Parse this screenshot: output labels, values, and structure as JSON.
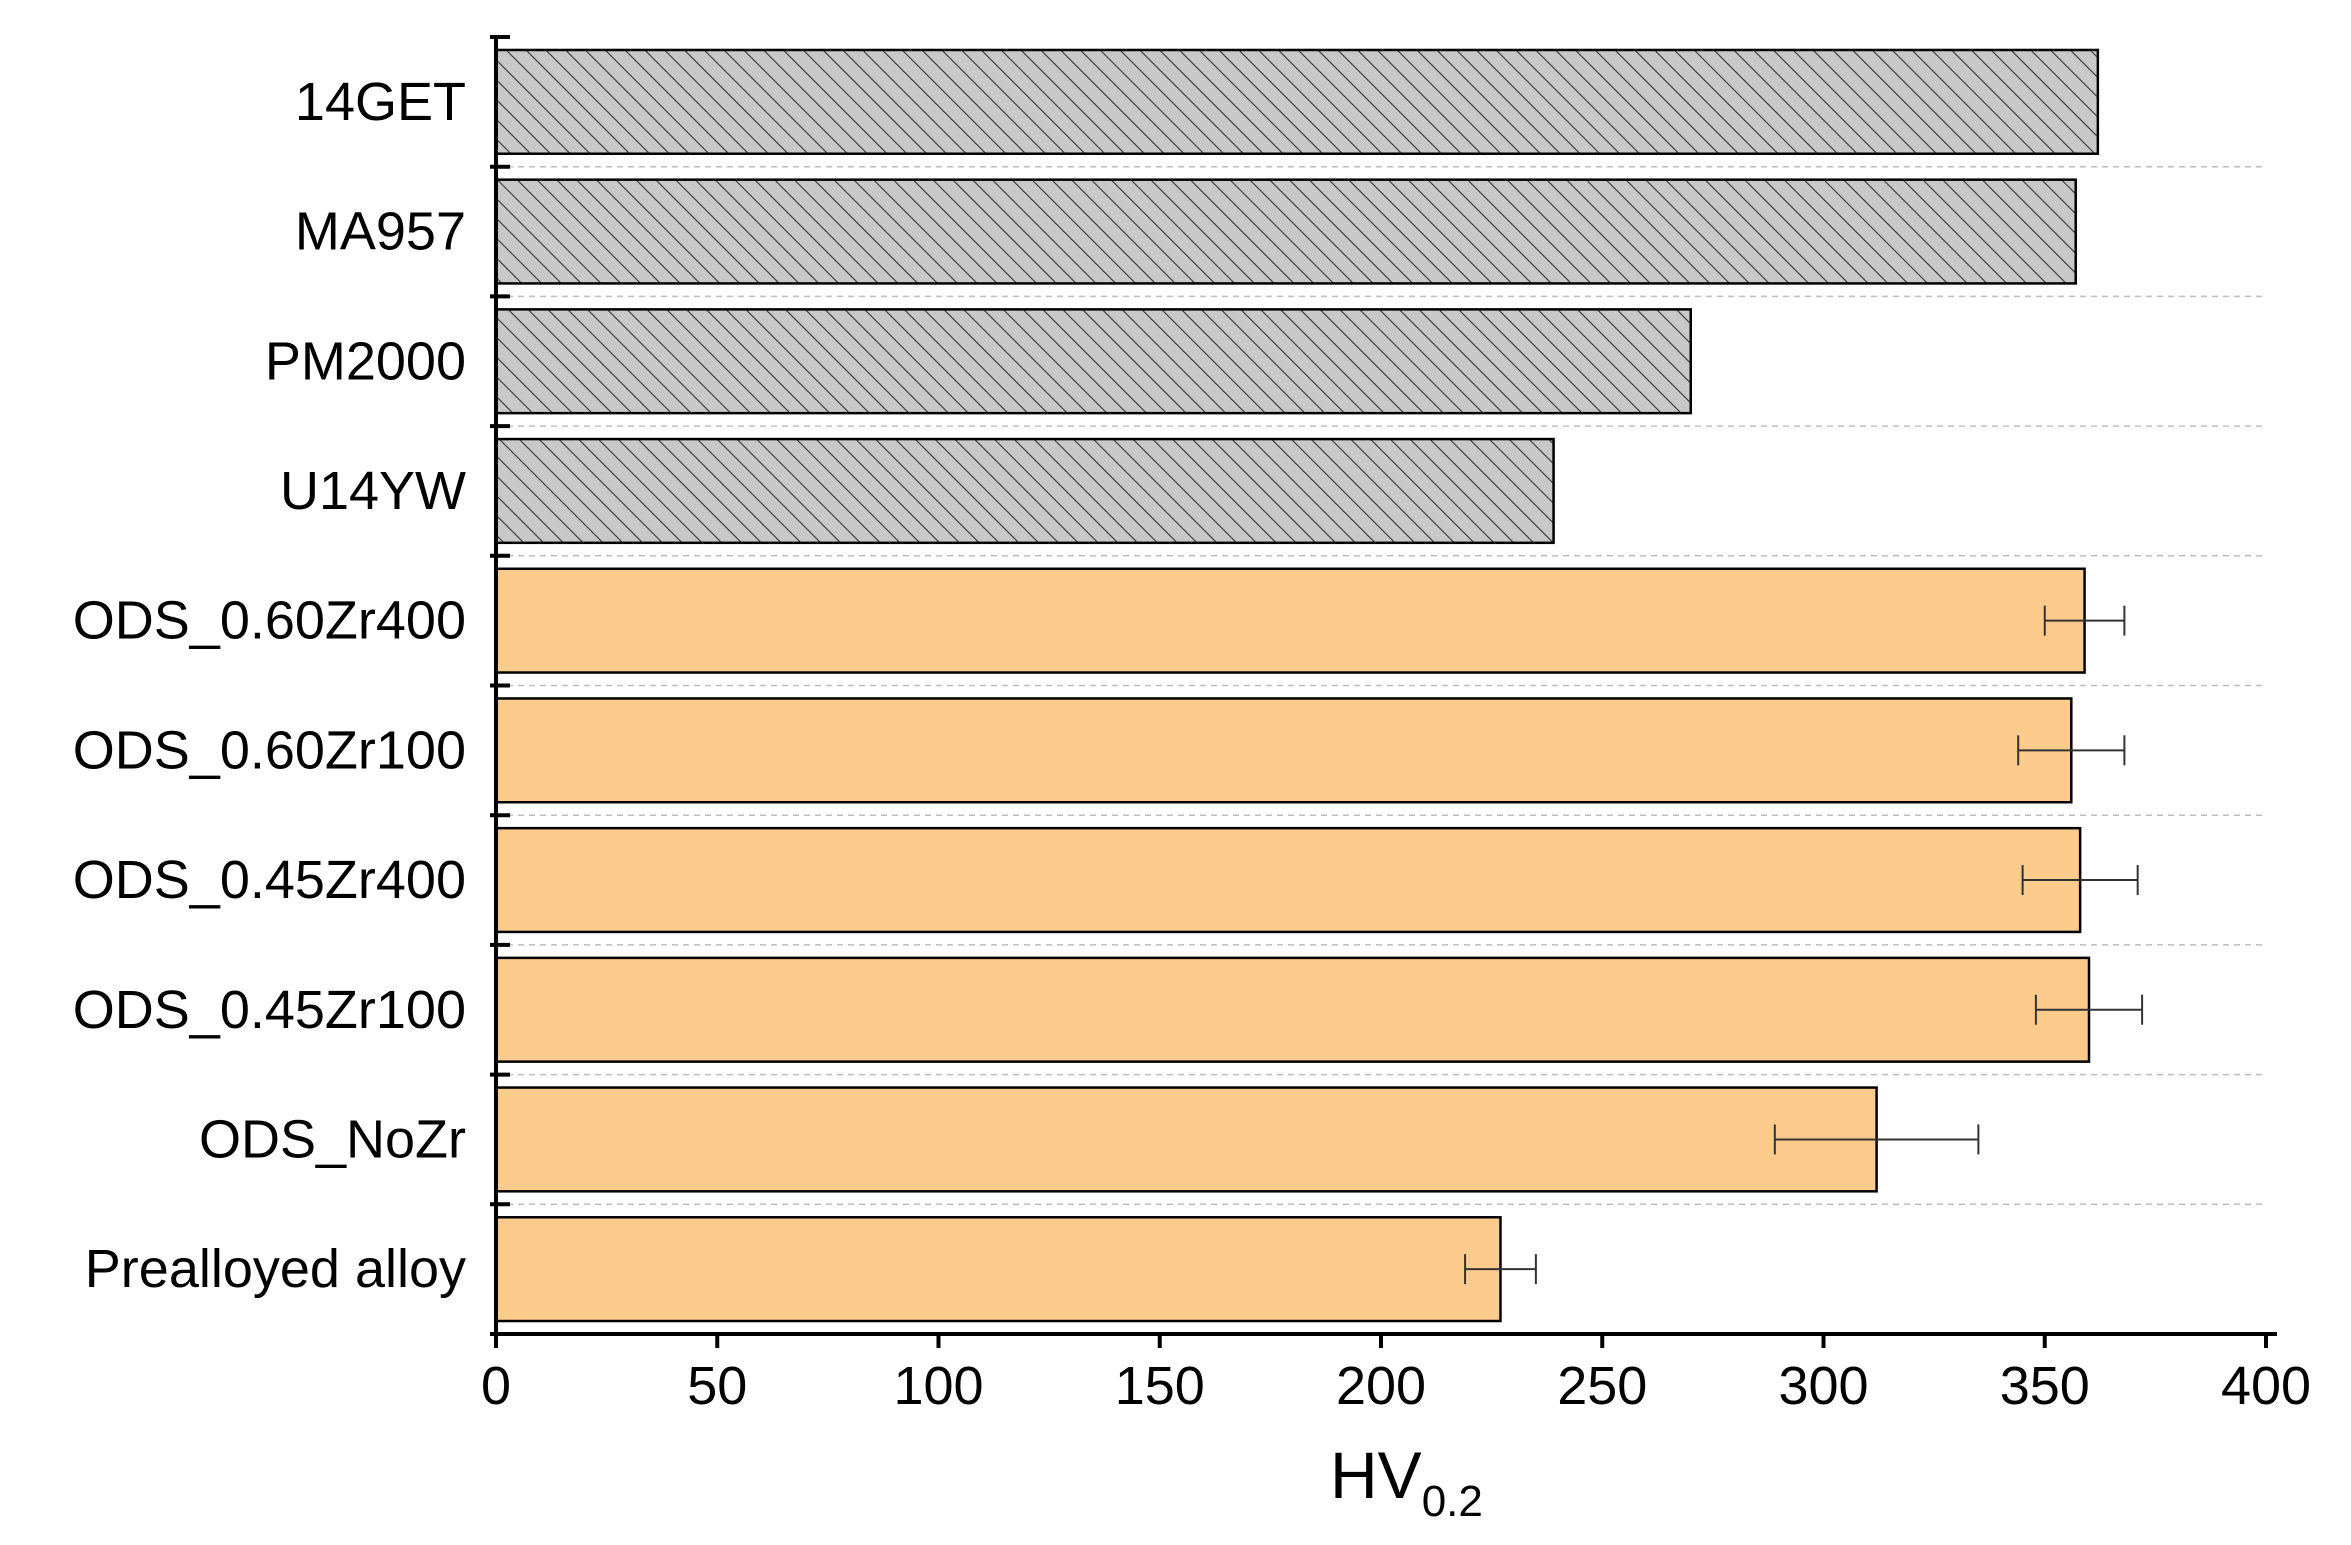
{
  "chart_data": {
    "type": "bar",
    "orientation": "horizontal",
    "title": "",
    "xlabel": "HV",
    "xlabel_subscript": "0.2",
    "ylabel": "",
    "xlim": [
      0,
      400
    ],
    "xticks": [
      "0",
      "50",
      "100",
      "150",
      "200",
      "250",
      "300",
      "350",
      "400"
    ],
    "grid": "horizontal dashed between categories",
    "legend": "none",
    "categories": [
      "14GET",
      "MA957",
      "PM2000",
      "U14YW",
      "ODS_0.60Zr400",
      "ODS_0.60Zr100",
      "ODS_0.45Zr400",
      "ODS_0.45Zr100",
      "ODS_NoZr",
      "Prealloyed alloy"
    ],
    "values": [
      362,
      357,
      270,
      239,
      359,
      356,
      358,
      360,
      312,
      227
    ],
    "errors": [
      null,
      null,
      null,
      null,
      9,
      12,
      13,
      12,
      23,
      8
    ],
    "styles": [
      "hatched",
      "hatched",
      "hatched",
      "hatched",
      "solid",
      "solid",
      "solid",
      "solid",
      "solid",
      "solid"
    ],
    "colors": {
      "hatched_fill": "#c8c8c8",
      "hatch_line": "#333333",
      "solid_fill": "#fdcb8c",
      "outline": "#000000",
      "grid": "#bdbdbd"
    }
  }
}
